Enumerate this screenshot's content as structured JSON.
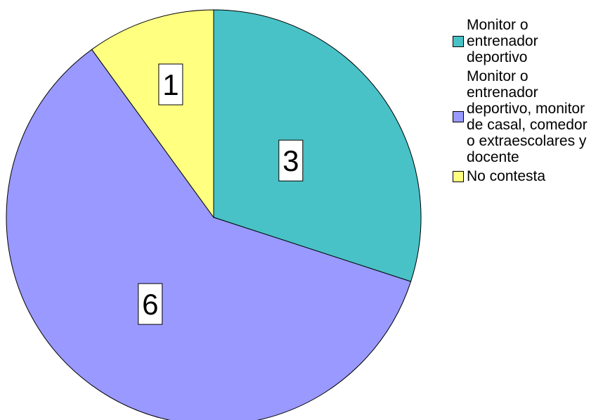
{
  "chart_data": {
    "type": "pie",
    "title": "",
    "slices": [
      {
        "label": "Monitor o entrenador deportivo",
        "value": 3,
        "data_label": "3",
        "color": "#48C2C6"
      },
      {
        "label": "Monitor o entrenador deportivo, monitor de casal, comedor o extraescolares y docente",
        "value": 6,
        "data_label": "6",
        "color": "#9999FF"
      },
      {
        "label": "No contesta",
        "value": 1,
        "data_label": "1",
        "color": "#FFFF80"
      }
    ],
    "legend": {
      "placement": "right",
      "items": [
        {
          "text": "Monitor o entrenador deportivo"
        },
        {
          "text": "Monitor o entrenador deportivo, monitor de casal, comedor o extraescolares y docente"
        },
        {
          "text": "No contesta"
        }
      ]
    }
  }
}
